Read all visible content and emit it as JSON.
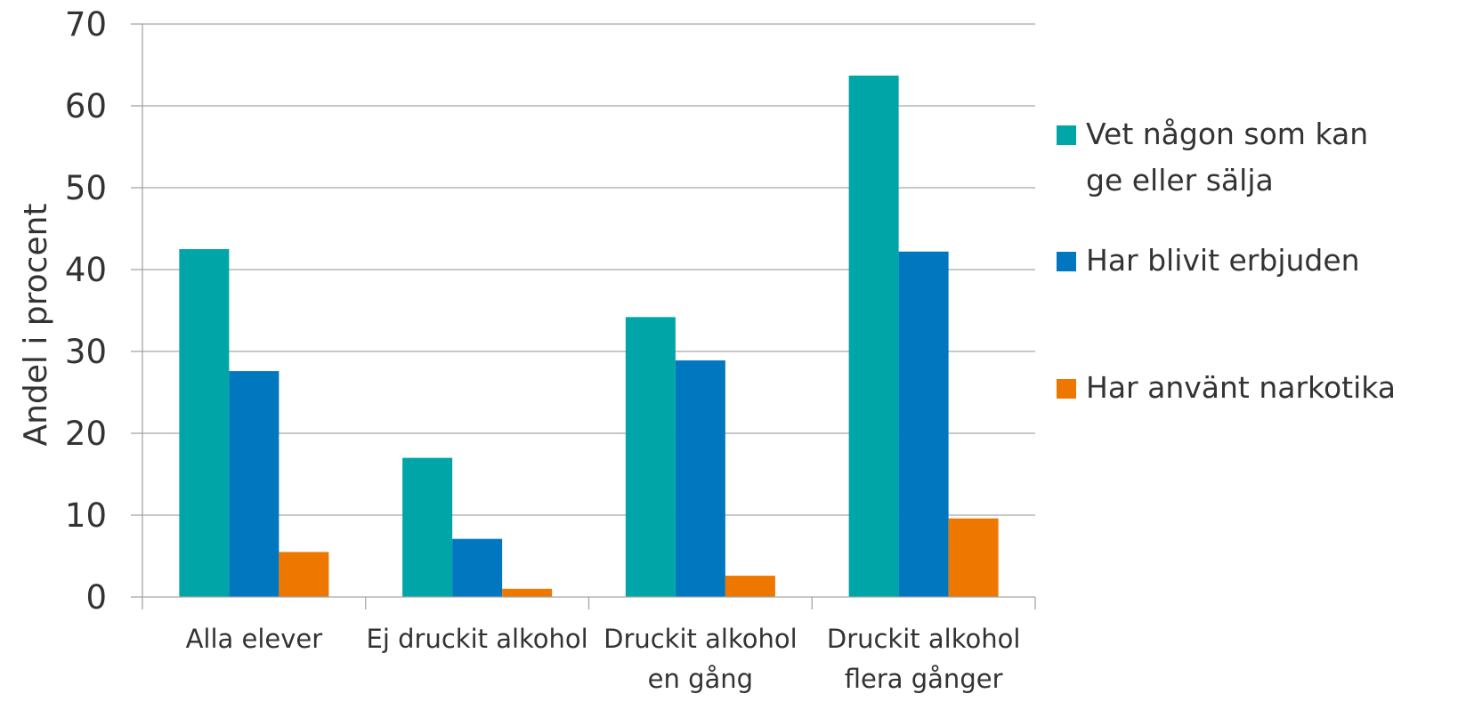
{
  "chart_data": {
    "type": "bar",
    "categories": [
      [
        "Alla elever"
      ],
      [
        "Ej druckit alkohol"
      ],
      [
        "Druckit alkohol",
        "en gång"
      ],
      [
        "Druckit alkohol",
        "flera gånger"
      ]
    ],
    "series": [
      {
        "name_lines": [
          "Vet någon som kan",
          "ge eller sälja"
        ],
        "color": "#00A5A8",
        "values": [
          42.5,
          17.0,
          34.2,
          63.7
        ]
      },
      {
        "name_lines": [
          "Har blivit erbjuden"
        ],
        "color": "#0077BF",
        "values": [
          27.6,
          7.1,
          28.9,
          42.2
        ]
      },
      {
        "name_lines": [
          "Har använt narkotika"
        ],
        "color": "#EE7700",
        "values": [
          5.5,
          1.0,
          2.6,
          9.6
        ]
      }
    ],
    "ylabel": "Andel i procent",
    "ylim": [
      0,
      70
    ],
    "yticks": [
      0,
      10,
      20,
      30,
      40,
      50,
      60,
      70
    ],
    "grid": true,
    "legend_position": "right"
  }
}
